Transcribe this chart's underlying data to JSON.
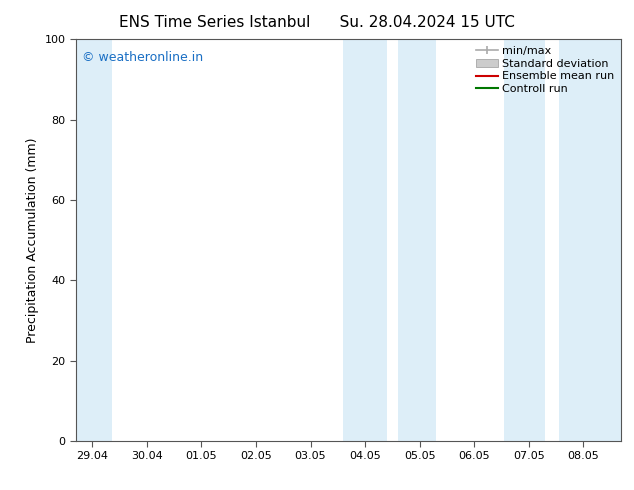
{
  "title_left": "ENS Time Series Istanbul",
  "title_right": "Su. 28.04.2024 15 UTC",
  "ylabel": "Precipitation Accumulation (mm)",
  "ylim": [
    0,
    100
  ],
  "yticks": [
    0,
    20,
    40,
    60,
    80,
    100
  ],
  "x_labels": [
    "29.04",
    "30.04",
    "01.05",
    "02.05",
    "03.05",
    "04.05",
    "05.05",
    "06.05",
    "07.05",
    "08.05"
  ],
  "x_positions": [
    0,
    1,
    2,
    3,
    4,
    5,
    6,
    7,
    8,
    9
  ],
  "xlim": [
    -0.3,
    9.7
  ],
  "watermark": "© weatheronline.in",
  "watermark_color": "#1a6fc4",
  "bg_color": "#ffffff",
  "band_color": "#ddeef8",
  "bands": [
    {
      "xmin": -0.3,
      "xmax": 0.35
    },
    {
      "xmin": 4.6,
      "xmax": 5.4
    },
    {
      "xmin": 5.6,
      "xmax": 6.3
    },
    {
      "xmin": 7.55,
      "xmax": 8.3
    },
    {
      "xmin": 8.55,
      "xmax": 9.7
    }
  ],
  "legend_items": [
    {
      "label": "min/max",
      "color": "#aaaaaa",
      "type": "line_with_caps"
    },
    {
      "label": "Standard deviation",
      "color": "#cccccc",
      "type": "rect"
    },
    {
      "label": "Ensemble mean run",
      "color": "#cc0000",
      "type": "line"
    },
    {
      "label": "Controll run",
      "color": "#007700",
      "type": "line"
    }
  ],
  "title_fontsize": 11,
  "axis_fontsize": 9,
  "tick_fontsize": 8,
  "legend_fontsize": 8,
  "watermark_fontsize": 9
}
